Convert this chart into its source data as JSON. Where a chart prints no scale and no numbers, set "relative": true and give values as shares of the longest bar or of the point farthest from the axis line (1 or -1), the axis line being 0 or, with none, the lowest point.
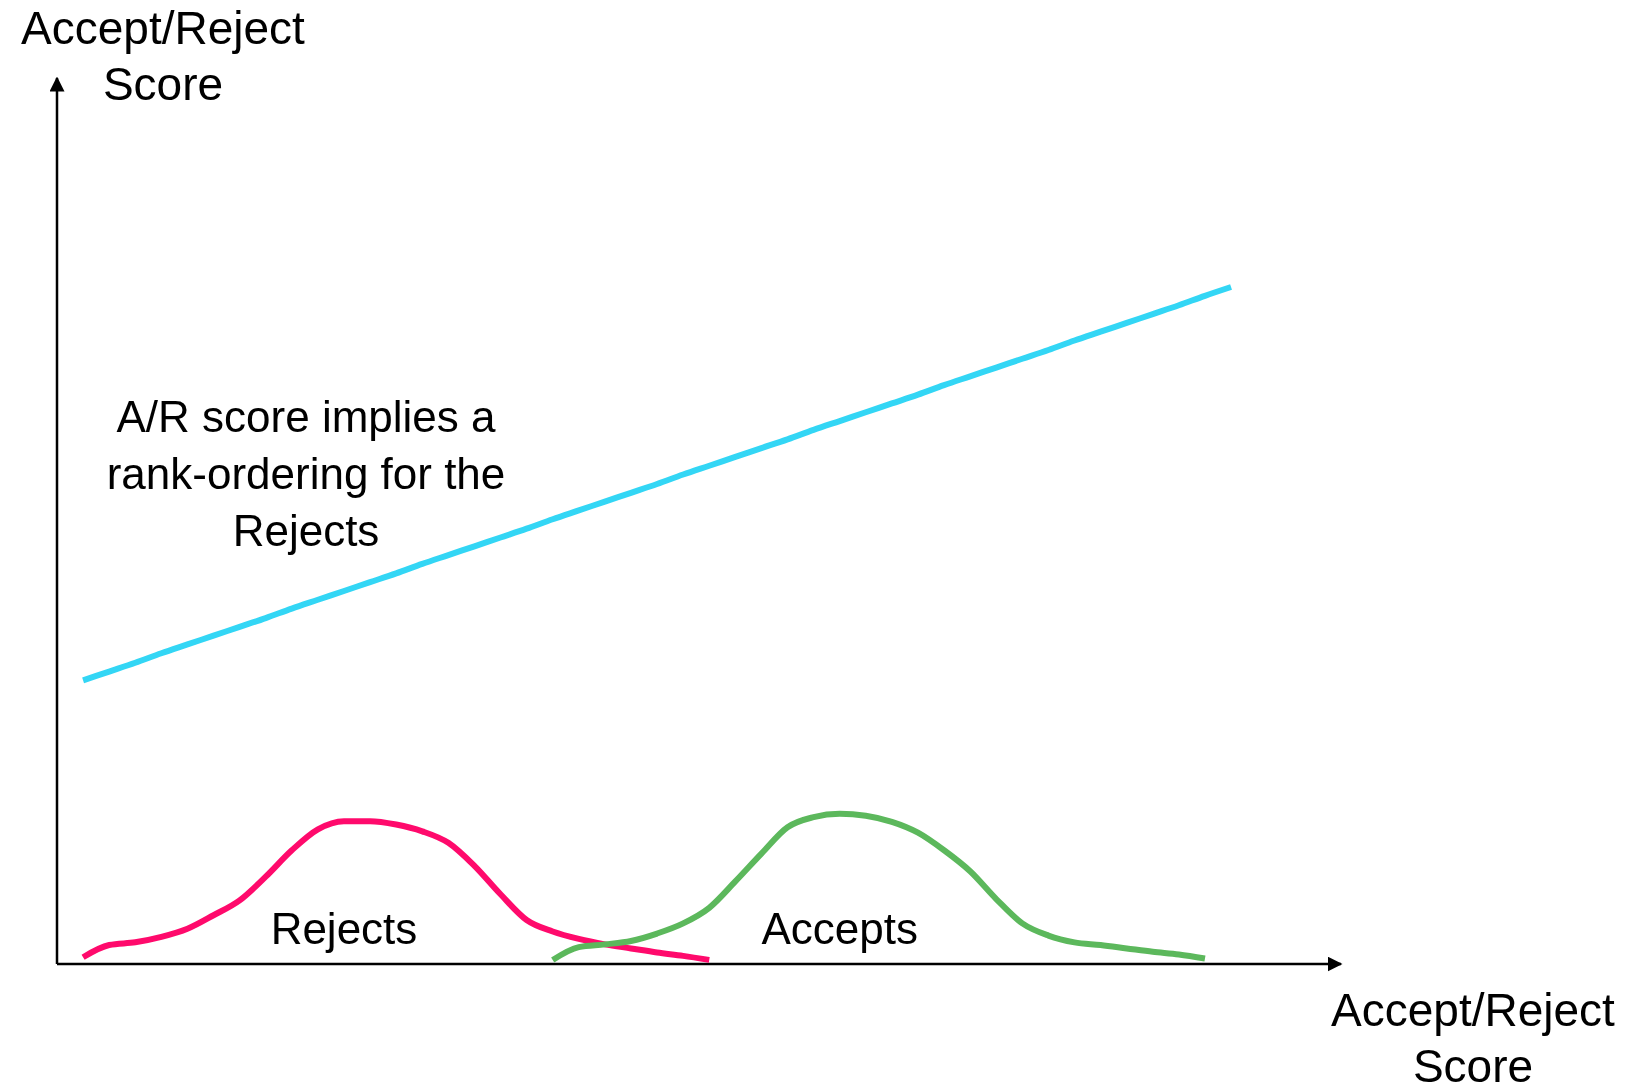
{
  "chart_data": {
    "type": "line",
    "relative": true,
    "xlabel": "Accept/Reject Score",
    "ylabel": "Accept/Reject Score",
    "annotations": [
      "A/R score implies a rank-ordering for the Rejects"
    ],
    "categories": [
      null,
      null,
      null,
      null,
      null,
      null,
      null,
      null,
      null,
      null,
      null,
      null,
      null,
      null,
      null,
      null,
      null,
      null,
      null,
      null,
      null,
      null,
      null,
      null,
      null,
      null,
      null,
      null,
      null,
      null,
      null,
      null,
      null,
      null,
      null,
      null,
      null,
      null,
      null,
      null,
      null,
      null,
      null,
      null,
      null,
      null,
      null
    ],
    "series": [
      {
        "color": "#33d6f5",
        "values": [
          null,
          0.419,
          0.432,
          0.445,
          0.459,
          0.472,
          0.485,
          0.498,
          0.511,
          0.525,
          0.538,
          0.551,
          0.564,
          0.577,
          0.591,
          0.604,
          0.617,
          0.63,
          0.643,
          0.657,
          0.67,
          0.683,
          0.696,
          0.709,
          0.723,
          0.736,
          0.749,
          0.762,
          0.775,
          0.789,
          0.802,
          0.815,
          0.828,
          0.841,
          0.855,
          0.868,
          0.881,
          0.894,
          0.907,
          0.921,
          0.934,
          0.947,
          0.96,
          0.973,
          0.987,
          1,
          null
        ]
      },
      {
        "name": "Rejects",
        "color": "#ff0a6c",
        "values": [
          null,
          0.01,
          0.028,
          0.032,
          0.04,
          0.052,
          0.072,
          0.094,
          0.129,
          0.168,
          0.199,
          0.211,
          0.211,
          0.206,
          0.196,
          0.179,
          0.145,
          0.103,
          0.065,
          0.048,
          0.037,
          0.029,
          0.023,
          0.017,
          0.012,
          0.006,
          null,
          null,
          null,
          null,
          null,
          null,
          null,
          null,
          null,
          null,
          null,
          null,
          null,
          null,
          null,
          null,
          null,
          null,
          null,
          null,
          null
        ]
      },
      {
        "name": "Accepts",
        "color": "#5cb85c",
        "values": [
          null,
          null,
          null,
          null,
          null,
          null,
          null,
          null,
          null,
          null,
          null,
          null,
          null,
          null,
          null,
          null,
          null,
          null,
          null,
          0.006,
          0.025,
          0.029,
          0.034,
          0.045,
          0.06,
          0.083,
          0.122,
          0.163,
          0.202,
          0.217,
          0.222,
          0.219,
          0.21,
          0.194,
          0.168,
          0.137,
          0.096,
          0.06,
          0.042,
          0.032,
          0.028,
          0.023,
          0.018,
          0.014,
          0.008,
          null,
          null
        ]
      }
    ]
  }
}
